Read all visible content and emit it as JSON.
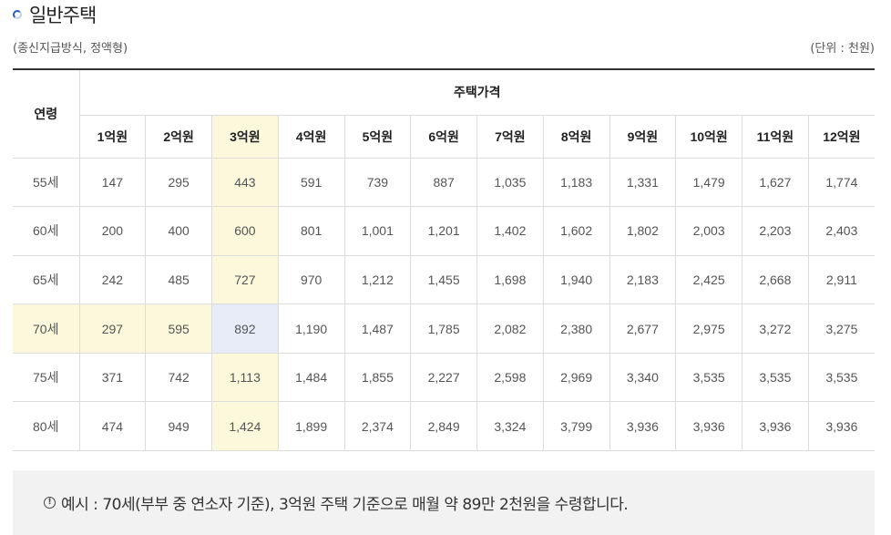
{
  "section": {
    "title": "일반주택"
  },
  "meta": {
    "subtitle": "(종신지급방식, 정액형)",
    "unit": "(단위 : 천원)"
  },
  "table": {
    "age_header": "연령",
    "price_header": "주택가격",
    "columns": [
      "1억원",
      "2억원",
      "3억원",
      "4억원",
      "5억원",
      "6억원",
      "7억원",
      "8억원",
      "9억원",
      "10억원",
      "11억원",
      "12억원"
    ],
    "rows": [
      {
        "age": "55세",
        "values": [
          "147",
          "295",
          "443",
          "591",
          "739",
          "887",
          "1,035",
          "1,183",
          "1,331",
          "1,479",
          "1,627",
          "1,774"
        ]
      },
      {
        "age": "60세",
        "values": [
          "200",
          "400",
          "600",
          "801",
          "1,001",
          "1,201",
          "1,402",
          "1,602",
          "1,802",
          "2,003",
          "2,203",
          "2,403"
        ]
      },
      {
        "age": "65세",
        "values": [
          "242",
          "485",
          "727",
          "970",
          "1,212",
          "1,455",
          "1,698",
          "1,940",
          "2,183",
          "2,425",
          "2,668",
          "2,911"
        ]
      },
      {
        "age": "70세",
        "values": [
          "297",
          "595",
          "892",
          "1,190",
          "1,487",
          "1,785",
          "2,082",
          "2,380",
          "2,677",
          "2,975",
          "3,272",
          "3,275"
        ]
      },
      {
        "age": "75세",
        "values": [
          "371",
          "742",
          "1,113",
          "1,484",
          "1,855",
          "2,227",
          "2,598",
          "2,969",
          "3,340",
          "3,535",
          "3,535",
          "3,535"
        ]
      },
      {
        "age": "80세",
        "values": [
          "474",
          "949",
          "1,424",
          "1,899",
          "2,374",
          "2,849",
          "3,324",
          "3,799",
          "3,936",
          "3,936",
          "3,936",
          "3,936"
        ]
      }
    ],
    "highlight": {
      "row_index": 3,
      "col_index": 2,
      "highlight_color": "#fcf8dc",
      "cross_color": "#e7ecf8"
    }
  },
  "example": {
    "icon": "info-circle-icon",
    "text": "예시 : 70세(부부 중 연소자 기준), 3억원 주택 기준으로 매월 약 89만 2천원을 수령합니다."
  }
}
